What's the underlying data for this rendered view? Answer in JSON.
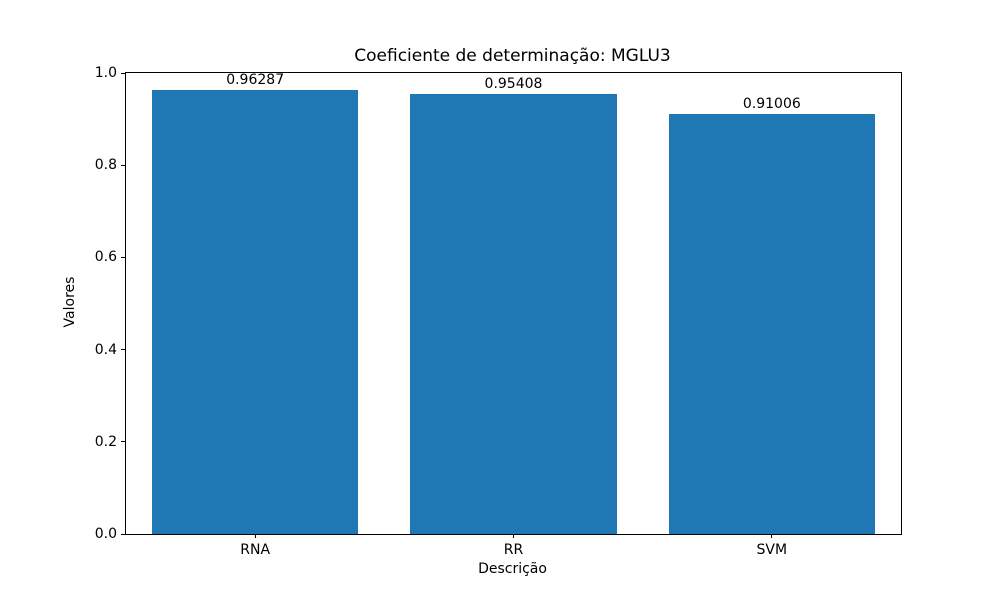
{
  "chart_data": {
    "type": "bar",
    "title": "Coeficiente de determinação: MGLU3",
    "xlabel": "Descrição",
    "ylabel": "Valores",
    "categories": [
      "RNA",
      "RR",
      "SVM"
    ],
    "values": [
      0.96287,
      0.95408,
      0.91006
    ],
    "value_labels": [
      "0.96287",
      "0.95408",
      "0.91006"
    ],
    "yticks": [
      0.0,
      0.2,
      0.4,
      0.6,
      0.8,
      1.0
    ],
    "ytick_labels": [
      "0.0",
      "0.2",
      "0.4",
      "0.6",
      "0.8",
      "1.0"
    ],
    "ylim": [
      0.0,
      1.0
    ],
    "bar_color": "#1f77b4",
    "bar_width_fraction": 0.8,
    "grid": false,
    "legend_position": "none",
    "axis_color": "#000000",
    "background_color": "#ffffff"
  }
}
